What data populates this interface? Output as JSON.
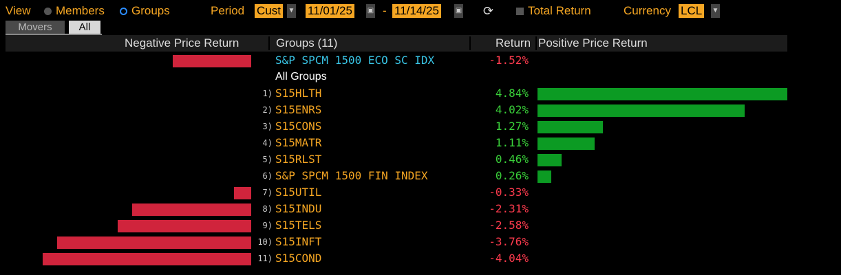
{
  "toolbar": {
    "view_label": "View",
    "members_label": "Members",
    "groups_label": "Groups",
    "period_label": "Period",
    "period_value": "Cust",
    "start_date": "11/01/25",
    "date_separator": "-",
    "end_date": "11/14/25",
    "total_return_label": "Total Return",
    "currency_label": "Currency",
    "currency_value": "LCL"
  },
  "tabs": {
    "movers": "Movers",
    "all": "All"
  },
  "header": {
    "negative": "Negative Price Return",
    "groups": "Groups (11)",
    "return": "Return",
    "positive": "Positive Price Return"
  },
  "max_abs_return": 4.84,
  "rows": [
    {
      "num": "",
      "name": "S&P SPCM 1500 ECO SC IDX",
      "return": "-1.52%",
      "value": -1.52,
      "kind": "idx"
    },
    {
      "num": "",
      "name": "All Groups",
      "return": "",
      "value": 0,
      "kind": "hdr"
    },
    {
      "num": "1)",
      "name": "S15HLTH",
      "return": "4.84%",
      "value": 4.84,
      "kind": "grp"
    },
    {
      "num": "2)",
      "name": "S15ENRS",
      "return": "4.02%",
      "value": 4.02,
      "kind": "grp"
    },
    {
      "num": "3)",
      "name": "S15CONS",
      "return": "1.27%",
      "value": 1.27,
      "kind": "grp"
    },
    {
      "num": "4)",
      "name": "S15MATR",
      "return": "1.11%",
      "value": 1.11,
      "kind": "grp"
    },
    {
      "num": "5)",
      "name": "S15RLST",
      "return": "0.46%",
      "value": 0.46,
      "kind": "grp"
    },
    {
      "num": "6)",
      "name": "S&P SPCM 1500 FIN INDEX",
      "return": "0.26%",
      "value": 0.26,
      "kind": "grp"
    },
    {
      "num": "7)",
      "name": "S15UTIL",
      "return": "-0.33%",
      "value": -0.33,
      "kind": "grp"
    },
    {
      "num": "8)",
      "name": "S15INDU",
      "return": "-2.31%",
      "value": -2.31,
      "kind": "grp"
    },
    {
      "num": "9)",
      "name": "S15TELS",
      "return": "-2.58%",
      "value": -2.58,
      "kind": "grp"
    },
    {
      "num": "10)",
      "name": "S15INFT",
      "return": "-3.76%",
      "value": -3.76,
      "kind": "grp"
    },
    {
      "num": "11)",
      "name": "S15COND",
      "return": "-4.04%",
      "value": -4.04,
      "kind": "grp"
    }
  ]
}
